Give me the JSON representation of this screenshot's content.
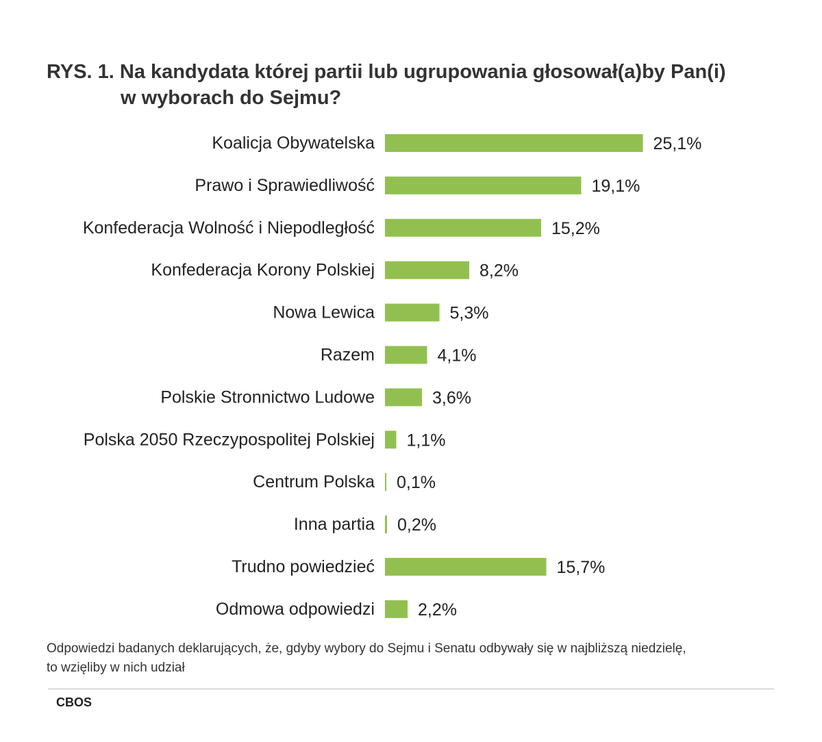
{
  "title": {
    "line1": "RYS. 1. Na kandydata której partii lub ugrupowania głosował(a)by Pan(i)",
    "line2": "w wyborach do Sejmu?"
  },
  "chart_data": {
    "type": "bar",
    "orientation": "horizontal",
    "categories": [
      "Koalicja Obywatelska",
      "Prawo i Sprawiedliwość",
      "Konfederacja Wolność i Niepodległość",
      "Konfederacja Korony Polskiej",
      "Nowa Lewica",
      "Razem",
      "Polskie Stronnictwo Ludowe",
      "Polska 2050 Rzeczypospolitej Polskiej",
      "Centrum Polska",
      "Inna partia",
      "Trudno powiedzieć",
      "Odmowa odpowiedzi"
    ],
    "values": [
      25.1,
      19.1,
      15.2,
      8.2,
      5.3,
      4.1,
      3.6,
      1.1,
      0.1,
      0.2,
      15.7,
      2.2
    ],
    "value_labels": [
      "25,1%",
      "19,1%",
      "15,2%",
      "8,2%",
      "5,3%",
      "4,1%",
      "3,6%",
      "1,1%",
      "0,1%",
      "0,2%",
      "15,7%",
      "2,2%"
    ],
    "xlim": [
      0,
      30
    ],
    "grid": false,
    "bar_color": "#92c050"
  },
  "footnote": {
    "line1": "Odpowiedzi badanych deklarujących, że, gdyby wybory do Sejmu i Senatu odbywały się w najbliższą niedzielę,",
    "line2": "to wzięliby w nich udział"
  },
  "source": "CBOS"
}
